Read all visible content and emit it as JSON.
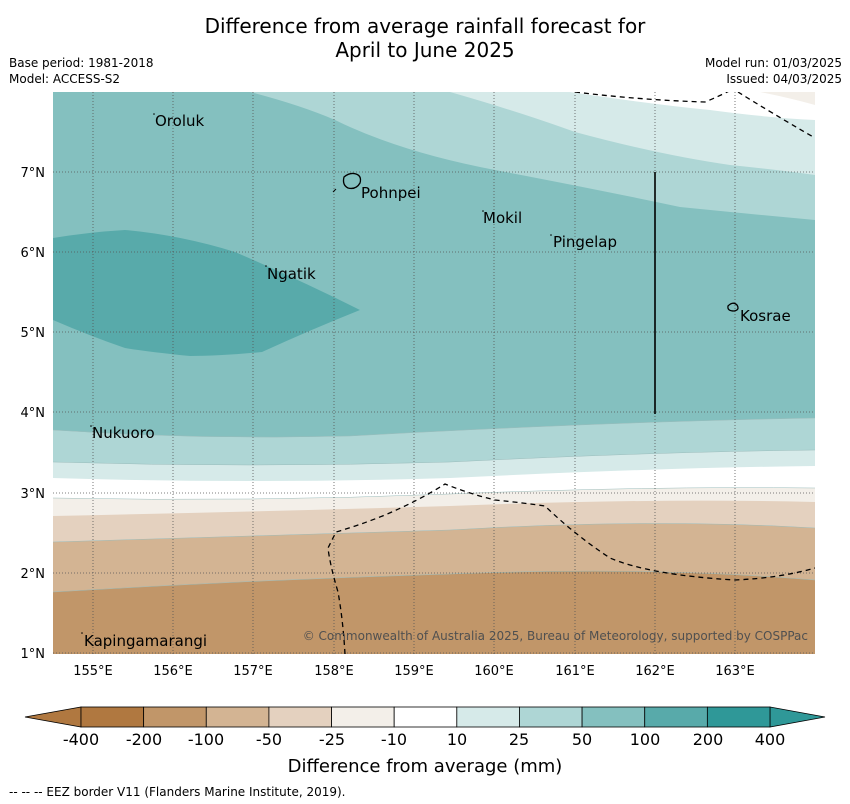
{
  "title_line1": "Difference from average rainfall forecast for",
  "title_line2": "April to June 2025",
  "base_period": "Base period: 1981-2018",
  "model": "Model: ACCESS-S2",
  "model_run": "Model run: 01/03/2025",
  "issued": "Issued: 04/03/2025",
  "places": {
    "oroluk": "Oroluk",
    "pohnpei": "Pohnpei",
    "mokil": "Mokil",
    "pingelap": "Pingelap",
    "ngatik": "Ngatik",
    "kosrae": "Kosrae",
    "nukuoro": "Nukuoro",
    "kapingamarangi": "Kapingamarangi"
  },
  "lat_ticks": [
    "7°N",
    "6°N",
    "5°N",
    "4°N",
    "3°N",
    "2°N",
    "1°N"
  ],
  "lon_ticks": [
    "155°E",
    "156°E",
    "157°E",
    "158°E",
    "159°E",
    "160°E",
    "161°E",
    "162°E",
    "163°E"
  ],
  "copyright": "© Commonwealth of Australia 2025, Bureau of Meteorology, supported by COSPPac",
  "colorbar": {
    "labels": [
      "-400",
      "-200",
      "-100",
      "-50",
      "-25",
      "-10",
      "10",
      "25",
      "50",
      "100",
      "200",
      "400"
    ],
    "colors": [
      "#b07840",
      "#c19669",
      "#d3b493",
      "#e4d1bf",
      "#f3efe9",
      "#ffffff",
      "#d6eae9",
      "#aed6d5",
      "#84c0bf",
      "#58aaaa",
      "#2f9898"
    ],
    "title": "Difference from average (mm)"
  },
  "footer": "--  --  -- EEZ border V11 (Flanders Marine Institute, 2019)."
}
